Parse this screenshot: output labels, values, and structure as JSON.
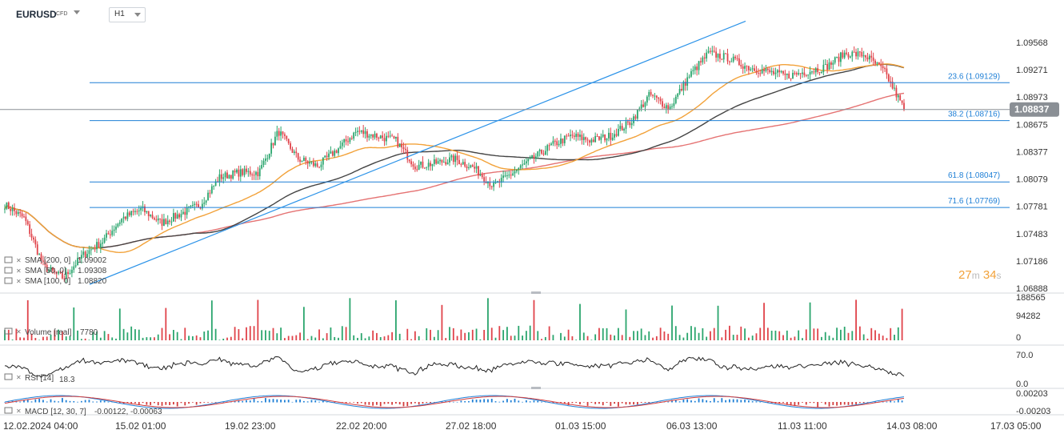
{
  "header": {
    "symbol": "EURUSD",
    "symbol_type": "CFD",
    "timeframe": "H1"
  },
  "countdown": {
    "minutes": "27",
    "min_unit": "m",
    "seconds": "34",
    "sec_unit": "s"
  },
  "colors": {
    "up": "#2aa56d",
    "down": "#e0434a",
    "sma200": "#e57373",
    "sma50": "#f2a23a",
    "sma100": "#444444",
    "fib": "#1e7fd6",
    "trendline": "#2a92e8",
    "price_tag": "#8a8f95",
    "macd": "#1e7fd6",
    "signal": "#d33c3c"
  },
  "chart_data": {
    "type": "candlestick",
    "symbol": "EURUSD",
    "timeframe": "H1",
    "y_ticks": [
      "1.09568",
      "1.09271",
      "1.08973",
      "1.08675",
      "1.08377",
      "1.08079",
      "1.07781",
      "1.07483",
      "1.07186",
      "1.06888"
    ],
    "ylim": [
      1.06888,
      1.09568
    ],
    "x_labels": [
      "12.02.2024  04:00",
      "15.02  01:00",
      "19.02  23:00",
      "22.02  20:00",
      "27.02  18:00",
      "01.03  15:00",
      "06.03  13:00",
      "11.03  11:00",
      "14.03  08:00",
      "17.03  05:00"
    ],
    "last_price": "1.08837",
    "fib_levels": [
      {
        "label": "23.6 (1.09129)",
        "value": 1.09129
      },
      {
        "label": "38.2 (1.08716)",
        "value": 1.08716
      },
      {
        "label": "61.8 (1.08047)",
        "value": 1.08047
      },
      {
        "label": "71.6 (1.07769)",
        "value": 1.07769
      }
    ],
    "trendline": {
      "from": {
        "x": "13.02 18:00",
        "y": 1.0693
      },
      "to": {
        "x": "07.03 12:00",
        "y": 1.098
      }
    },
    "price_path": [
      [
        "12.02",
        1.078
      ],
      [
        "13.02",
        1.0765
      ],
      [
        "13.02",
        1.0712
      ],
      [
        "14.02",
        1.07
      ],
      [
        "14.02",
        1.0725
      ],
      [
        "15.02",
        1.074
      ],
      [
        "15.02",
        1.0765
      ],
      [
        "16.02",
        1.0775
      ],
      [
        "16.02",
        1.076
      ],
      [
        "19.02",
        1.077
      ],
      [
        "19.02",
        1.078
      ],
      [
        "20.02",
        1.081
      ],
      [
        "20.02",
        1.0815
      ],
      [
        "21.02",
        1.0815
      ],
      [
        "21.02",
        1.086
      ],
      [
        "22.02",
        1.083
      ],
      [
        "22.02",
        1.0822
      ],
      [
        "23.02",
        1.084
      ],
      [
        "23.02",
        1.086
      ],
      [
        "26.02",
        1.0855
      ],
      [
        "26.02",
        1.085
      ],
      [
        "27.02",
        1.0822
      ],
      [
        "27.02",
        1.0825
      ],
      [
        "28.02",
        1.083
      ],
      [
        "28.02",
        1.082
      ],
      [
        "29.02",
        1.08
      ],
      [
        "29.02",
        1.0815
      ],
      [
        "01.03",
        1.083
      ],
      [
        "01.03",
        1.0845
      ],
      [
        "04.03",
        1.0855
      ],
      [
        "04.03",
        1.085
      ],
      [
        "05.03",
        1.0855
      ],
      [
        "05.03",
        1.087
      ],
      [
        "06.03",
        1.09
      ],
      [
        "06.03",
        1.0885
      ],
      [
        "07.03",
        1.092
      ],
      [
        "07.03",
        1.0945
      ],
      [
        "08.03",
        1.094
      ],
      [
        "08.03",
        1.093
      ],
      [
        "11.03",
        1.0925
      ],
      [
        "11.03",
        1.092
      ],
      [
        "12.03",
        1.0925
      ],
      [
        "12.03",
        1.093
      ],
      [
        "13.03",
        1.0945
      ],
      [
        "13.03",
        1.0943
      ],
      [
        "14.03",
        1.0925
      ],
      [
        "14.03",
        1.0884
      ]
    ],
    "indicators": [
      {
        "label": "SMA [200, 0]",
        "value": "1.09002"
      },
      {
        "label": "SMA [50, 0]",
        "value": "1.09308"
      },
      {
        "label": "SMA [100, 0]",
        "value": "1.08820"
      }
    ],
    "volume": {
      "label": "Volume [real]",
      "value": "7780",
      "ticks": [
        "188565",
        "94282",
        "0"
      ]
    },
    "rsi": {
      "label": "RSI [14]",
      "value": "18.3",
      "ticks": [
        "70.0",
        "0.0"
      ]
    },
    "macd": {
      "label": "MACD [12, 30, 7]",
      "values": "-0.00122, -0.00063",
      "ticks": [
        "0.00203",
        "-0.00203"
      ]
    }
  }
}
